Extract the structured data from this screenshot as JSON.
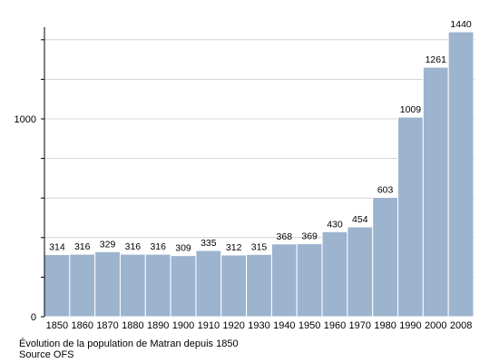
{
  "caption": {
    "line1": "Évolution de la population de Matran depuis 1850",
    "line2": "Source OFS"
  },
  "chart_data": {
    "type": "bar",
    "title": "",
    "xlabel": "",
    "ylabel": "",
    "categories": [
      "1850",
      "1860",
      "1870",
      "1880",
      "1890",
      "1900",
      "1910",
      "1920",
      "1930",
      "1940",
      "1950",
      "1960",
      "1970",
      "1980",
      "1990",
      "2000",
      "2008"
    ],
    "values": [
      314,
      316,
      329,
      316,
      316,
      309,
      335,
      312,
      315,
      368,
      369,
      430,
      454,
      603,
      1009,
      1261,
      1440
    ],
    "ylim": [
      0,
      1500
    ],
    "yticks_labeled": [
      0,
      1000
    ],
    "yticks_minor_step": 200,
    "grid": true,
    "bar_color": "#9db4cf",
    "grid_color": "#cccccc"
  }
}
